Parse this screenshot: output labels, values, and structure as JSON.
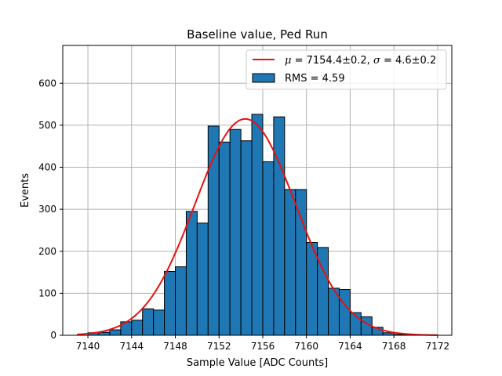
{
  "chart_data": {
    "type": "bar",
    "title": "Baseline value, Ped Run",
    "xlabel": "Sample Value [ADC Counts]",
    "ylabel": "Events",
    "xlim": [
      7137.7,
      7173.3
    ],
    "ylim": [
      0,
      690
    ],
    "grid": true,
    "bin_width": 1,
    "bin_starts": [
      7140,
      7141,
      7142,
      7143,
      7144,
      7145,
      7146,
      7147,
      7148,
      7149,
      7150,
      7151,
      7152,
      7153,
      7154,
      7155,
      7156,
      7157,
      7158,
      7159,
      7160,
      7161,
      7162,
      7163,
      7164,
      7165,
      7166,
      7167,
      7168,
      7169,
      7170
    ],
    "counts": [
      6,
      7,
      13,
      32,
      36,
      63,
      60,
      152,
      163,
      295,
      267,
      498,
      460,
      490,
      463,
      526,
      413,
      520,
      347,
      347,
      221,
      209,
      112,
      109,
      54,
      44,
      19,
      6,
      2,
      2,
      1
    ],
    "xticks": [
      7140,
      7144,
      7148,
      7152,
      7156,
      7160,
      7164,
      7168,
      7172
    ],
    "xtick_labels": [
      "7140",
      "7144",
      "7148",
      "7152",
      "7156",
      "7160",
      "7164",
      "7168",
      "7172"
    ],
    "yticks": [
      0,
      100,
      200,
      300,
      400,
      500,
      600
    ],
    "ytick_labels": [
      "0",
      "100",
      "200",
      "300",
      "400",
      "500",
      "600"
    ],
    "fit": {
      "type": "gaussian",
      "mu": 7154.4,
      "sigma": 4.6,
      "amplitude": 515,
      "x_range": [
        7139,
        7172
      ]
    },
    "legend": {
      "placement": "top-right",
      "entries": [
        {
          "prefix_symbol": "μ",
          "prefix_rest": " = 7154.4±0.2, ",
          "symbol2": "σ",
          "rest2": " = 4.6±0.2"
        },
        {
          "text": "RMS = 4.59"
        }
      ]
    },
    "colors": {
      "bars": "#1f77b4",
      "bar_edge": "#000000",
      "fit_line": "#e8110f",
      "grid": "#b0b0b0"
    }
  }
}
